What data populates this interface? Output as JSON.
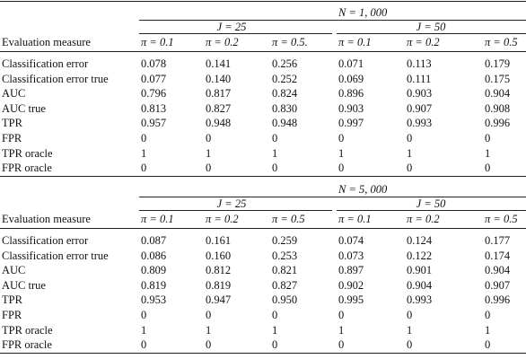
{
  "blocks": [
    {
      "title": "N = 1, 000",
      "groups": [
        "J = 25",
        "J = 50"
      ],
      "columns": [
        "Evaluation measure",
        "π = 0.1",
        "π = 0.2",
        "π = 0.5.",
        "π = 0.1",
        "π = 0.2",
        "π = 0.5"
      ],
      "rows": [
        [
          "Classification error",
          "0.078",
          "0.141",
          "0.256",
          "0.071",
          "0.113",
          "0.179"
        ],
        [
          "Classification error true",
          "0.077",
          "0.140",
          "0.252",
          "0.069",
          "0.111",
          "0.175"
        ],
        [
          "AUC",
          "0.796",
          "0.817",
          "0.824",
          "0.896",
          "0.903",
          "0.904"
        ],
        [
          "AUC true",
          "0.813",
          "0.827",
          "0.830",
          "0.903",
          "0.907",
          "0.908"
        ],
        [
          "TPR",
          "0.957",
          "0.948",
          "0.948",
          "0.997",
          "0.993",
          "0.996"
        ],
        [
          "FPR",
          "0",
          "0",
          "0",
          "0",
          "0",
          "0"
        ],
        [
          "TPR oracle",
          "1",
          "1",
          "1",
          "1",
          "1",
          "1"
        ],
        [
          "FPR oracle",
          "0",
          "0",
          "0",
          "0",
          "0",
          "0"
        ]
      ]
    },
    {
      "title": "N = 5, 000",
      "groups": [
        "J = 25",
        "J = 50"
      ],
      "columns": [
        "Evaluation measure",
        "π = 0.1",
        "π = 0.2",
        "π = 0.5",
        "π = 0.1",
        "π = 0.2",
        "π = 0.5"
      ],
      "rows": [
        [
          "Classification error",
          "0.087",
          "0.161",
          "0.259",
          "0.074",
          "0.124",
          "0.177"
        ],
        [
          "Classification error true",
          "0.086",
          "0.160",
          "0.253",
          "0.073",
          "0.122",
          "0.174"
        ],
        [
          "AUC",
          "0.809",
          "0.812",
          "0.821",
          "0.897",
          "0.901",
          "0.904"
        ],
        [
          "AUC true",
          "0.819",
          "0.819",
          "0.827",
          "0.902",
          "0.904",
          "0.907"
        ],
        [
          "TPR",
          "0.953",
          "0.947",
          "0.950",
          "0.995",
          "0.993",
          "0.996"
        ],
        [
          "FPR",
          "0",
          "0",
          "0",
          "0",
          "0",
          "0"
        ],
        [
          "TPR oracle",
          "1",
          "1",
          "1",
          "1",
          "1",
          "1"
        ],
        [
          "FPR oracle",
          "0",
          "0",
          "0",
          "0",
          "0",
          "0"
        ]
      ]
    }
  ]
}
